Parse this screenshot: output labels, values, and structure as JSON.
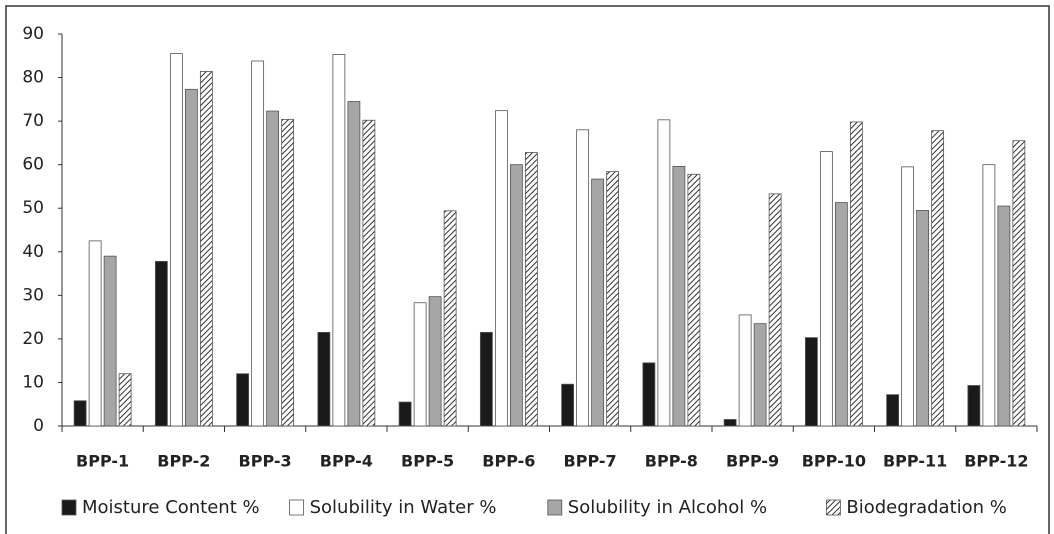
{
  "chart_data": {
    "type": "bar",
    "categories": [
      "BPP-1",
      "BPP-2",
      "BPP-3",
      "BPP-4",
      "BPP-5",
      "BPP-6",
      "BPP-7",
      "BPP-8",
      "BPP-9",
      "BPP-10",
      "BPP-11",
      "BPP-12"
    ],
    "series": [
      {
        "name": "Moisture Content %",
        "color": "#1a1a1a",
        "values": [
          5.8,
          37.8,
          12,
          21.5,
          5.5,
          21.5,
          9.6,
          14.5,
          1.5,
          20.3,
          7.2,
          9.3
        ]
      },
      {
        "name": "Solubility in Water %",
        "color": "#ffffff",
        "values": [
          42.5,
          85.5,
          83.8,
          85.3,
          28.3,
          72.4,
          68,
          70.3,
          25.5,
          63,
          59.5,
          60
        ]
      },
      {
        "name": "Solubility in Alcohol %",
        "color": "#a6a6a6",
        "values": [
          39,
          77.3,
          72.3,
          74.5,
          29.7,
          60,
          56.7,
          59.6,
          23.5,
          51.3,
          49.5,
          50.5
        ]
      },
      {
        "name": "Biodegradation %",
        "color": "#ffffff",
        "pattern": "hatch",
        "values": [
          12,
          81.4,
          70.4,
          70.2,
          49.4,
          62.8,
          58.4,
          57.8,
          53.3,
          69.8,
          67.8,
          65.5
        ]
      }
    ],
    "ylim": [
      0,
      90
    ],
    "yticks": [
      0,
      10,
      20,
      30,
      40,
      50,
      60,
      70,
      80,
      90
    ],
    "grid": false,
    "legend": "bottom"
  }
}
